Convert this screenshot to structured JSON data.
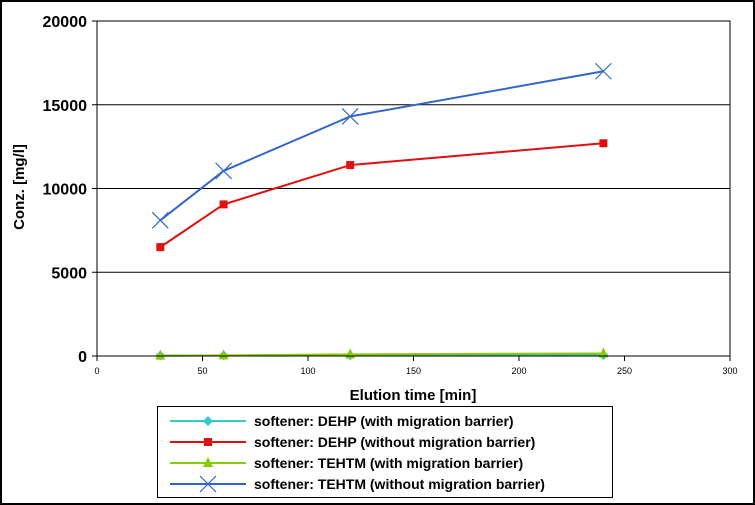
{
  "chart_data": {
    "type": "line",
    "title": "",
    "xlabel": "Elution time [min]",
    "ylabel": "Conz. [mg/l]",
    "xlim": [
      0,
      300
    ],
    "ylim": [
      0,
      20000
    ],
    "xticks": [
      "0",
      "50",
      "100",
      "150",
      "200",
      "250",
      "300"
    ],
    "yticks": [
      "0",
      "5000",
      "10000",
      "15000",
      "20000"
    ],
    "grid": "horizontal",
    "legend_position": "bottom",
    "series": [
      {
        "name": "softener: DEHP (with migration barrier)",
        "color": "#33cccc",
        "marker": "diamond",
        "x": [
          30,
          60,
          120,
          240
        ],
        "y": [
          20,
          30,
          40,
          50
        ]
      },
      {
        "name": "softener: DEHP (without migration barrier)",
        "color": "#e01010",
        "marker": "square",
        "x": [
          30,
          60,
          120,
          240
        ],
        "y": [
          6500,
          9050,
          11400,
          12700
        ]
      },
      {
        "name": "softener: TEHTM (with migration barrier)",
        "color": "#88cc00",
        "marker": "triangle",
        "x": [
          30,
          60,
          120,
          240
        ],
        "y": [
          20,
          40,
          100,
          150
        ]
      },
      {
        "name": "softener: TEHTM (without migration barrier)",
        "color": "#3366cc",
        "marker": "x",
        "x": [
          30,
          60,
          120,
          240
        ],
        "y": [
          8100,
          11050,
          14300,
          17000
        ]
      }
    ]
  }
}
